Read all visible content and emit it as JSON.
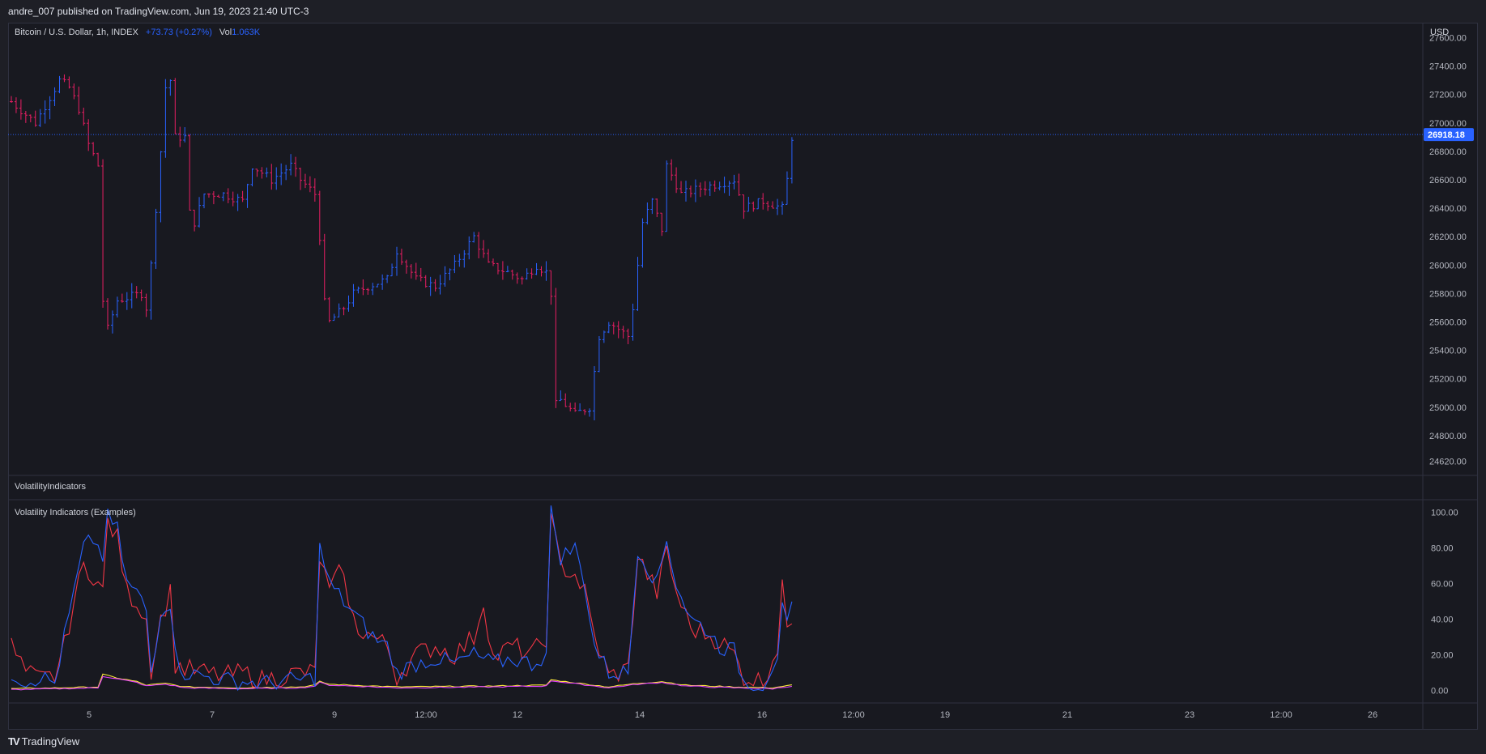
{
  "header": {
    "publish_text": "andre_007 published on TradingView.com, Jun 19, 2023 21:40 UTC-3"
  },
  "main_pane": {
    "symbol": "Bitcoin / U.S. Dollar, 1h, INDEX",
    "change": "+73.73 (+0.27%)",
    "volume_label": "Vol",
    "volume_value": "1.063K",
    "currency": "USD",
    "last_price_label": "26918.18"
  },
  "pane_labels": {
    "pane2_title": "VolatilityIndicators",
    "pane3_title": "Volatility Indicators (Examples)"
  },
  "footer": {
    "brand": "TradingView"
  },
  "colors": {
    "up": "#2962ff",
    "down": "#e91e63",
    "bg": "#181920",
    "grid": "#2a2e39",
    "blue_line": "#2962ff",
    "red_line": "#f23645",
    "yellow_line": "#ffeb3b",
    "pink_line": "#e040fb"
  },
  "chart_data": [
    {
      "type": "ohlc",
      "title": "Bitcoin / U.S. Dollar, 1h, INDEX",
      "y_ticks": [
        27600,
        27400,
        27200,
        27000,
        26800,
        26600,
        26400,
        26200,
        26000,
        25800,
        25600,
        25400,
        25200,
        25000,
        24800,
        24620
      ],
      "y_tick_labels": [
        "27600.00",
        "27400.00",
        "27200.00",
        "27000.00",
        "26800.00",
        "26600.00",
        "26400.00",
        "26200.00",
        "26000.00",
        "25800.00",
        "25600.00",
        "25400.00",
        "25200.00",
        "25000.00",
        "24800.00",
        "24620.00"
      ],
      "ylim": [
        24520,
        27700
      ],
      "last_price": 26918.18,
      "x_tick_labels": [
        "5",
        "7",
        "9",
        "12:00",
        "12",
        "14",
        "16",
        "12:00",
        "19",
        "21",
        "23",
        "12:00",
        "26"
      ],
      "price_path": [
        [
          0,
          27150
        ],
        [
          5,
          27000
        ],
        [
          10,
          27300
        ],
        [
          12,
          27250
        ],
        [
          14,
          27100
        ],
        [
          16,
          26850
        ],
        [
          18,
          26700
        ],
        [
          18.5,
          26000
        ],
        [
          19.5,
          25500
        ],
        [
          22,
          25750
        ],
        [
          27,
          25800
        ],
        [
          27.5,
          25450
        ],
        [
          28,
          25700
        ],
        [
          29,
          26000
        ],
        [
          31,
          26800
        ],
        [
          32,
          27250
        ],
        [
          33,
          27300
        ],
        [
          34,
          26900
        ],
        [
          36,
          26900
        ],
        [
          36.5,
          26400
        ],
        [
          38,
          26300
        ],
        [
          40,
          26500
        ],
        [
          44,
          26500
        ],
        [
          48,
          26450
        ],
        [
          50,
          26700
        ],
        [
          54,
          26600
        ],
        [
          58,
          26700
        ],
        [
          60,
          26600
        ],
        [
          63,
          26500
        ],
        [
          64,
          26200
        ],
        [
          64.5,
          25800
        ],
        [
          66,
          25600
        ],
        [
          69,
          25700
        ],
        [
          71,
          25800
        ],
        [
          74,
          25850
        ],
        [
          78,
          25900
        ],
        [
          80,
          26100
        ],
        [
          84,
          25900
        ],
        [
          88,
          25850
        ],
        [
          92,
          26000
        ],
        [
          96,
          26200
        ],
        [
          99,
          26000
        ],
        [
          103,
          25950
        ],
        [
          106,
          25900
        ],
        [
          109,
          26000
        ],
        [
          111,
          25950
        ],
        [
          112,
          25800
        ],
        [
          112.5,
          25000
        ],
        [
          114,
          25050
        ],
        [
          117,
          24950
        ],
        [
          120,
          25000
        ],
        [
          122,
          25500
        ],
        [
          124,
          25600
        ],
        [
          128,
          25500
        ],
        [
          129,
          25700
        ],
        [
          130,
          26000
        ],
        [
          131,
          26300
        ],
        [
          133,
          26450
        ],
        [
          135,
          26250
        ],
        [
          136,
          26700
        ],
        [
          139,
          26500
        ],
        [
          144,
          26550
        ],
        [
          150,
          26600
        ],
        [
          152,
          26400
        ],
        [
          156,
          26450
        ],
        [
          160,
          26400
        ],
        [
          161,
          26600
        ],
        [
          162,
          26900
        ]
      ],
      "last_index": 162
    },
    {
      "type": "line",
      "title": "Volatility Indicators (Examples)",
      "y_ticks": [
        100,
        80,
        60,
        40,
        20,
        0
      ],
      "y_tick_labels": [
        "100.00",
        "80.00",
        "60.00",
        "40.00",
        "20.00",
        "0.00"
      ],
      "ylim": [
        -7,
        107
      ],
      "series_blue": [
        [
          0,
          10
        ],
        [
          3,
          5
        ],
        [
          6,
          8
        ],
        [
          9,
          4
        ],
        [
          11,
          30
        ],
        [
          13,
          55
        ],
        [
          15,
          80
        ],
        [
          17,
          85
        ],
        [
          19,
          75
        ],
        [
          20,
          97
        ],
        [
          22,
          90
        ],
        [
          24,
          60
        ],
        [
          26,
          55
        ],
        [
          28,
          45
        ],
        [
          29,
          10
        ],
        [
          31,
          45
        ],
        [
          33,
          50
        ],
        [
          34,
          20
        ],
        [
          36,
          10
        ],
        [
          40,
          8
        ],
        [
          44,
          6
        ],
        [
          48,
          5
        ],
        [
          52,
          4
        ],
        [
          56,
          5
        ],
        [
          60,
          6
        ],
        [
          63,
          7
        ],
        [
          64,
          80
        ],
        [
          66,
          60
        ],
        [
          69,
          50
        ],
        [
          72,
          40
        ],
        [
          75,
          30
        ],
        [
          78,
          25
        ],
        [
          80,
          10
        ],
        [
          84,
          15
        ],
        [
          88,
          18
        ],
        [
          92,
          15
        ],
        [
          96,
          20
        ],
        [
          100,
          15
        ],
        [
          104,
          18
        ],
        [
          108,
          15
        ],
        [
          111,
          20
        ],
        [
          112,
          100
        ],
        [
          114,
          75
        ],
        [
          117,
          80
        ],
        [
          119,
          60
        ],
        [
          121,
          25
        ],
        [
          124,
          10
        ],
        [
          128,
          10
        ],
        [
          130,
          80
        ],
        [
          133,
          65
        ],
        [
          134,
          60
        ],
        [
          136,
          85
        ],
        [
          138,
          60
        ],
        [
          141,
          40
        ],
        [
          144,
          35
        ],
        [
          147,
          25
        ],
        [
          150,
          22
        ],
        [
          152,
          5
        ],
        [
          156,
          3
        ],
        [
          159,
          20
        ],
        [
          160,
          45
        ],
        [
          161,
          35
        ],
        [
          162,
          45
        ]
      ],
      "series_red": [
        [
          0,
          25
        ],
        [
          3,
          10
        ],
        [
          6,
          6
        ],
        [
          9,
          8
        ],
        [
          11,
          25
        ],
        [
          13,
          50
        ],
        [
          15,
          70
        ],
        [
          17,
          65
        ],
        [
          19,
          55
        ],
        [
          20,
          95
        ],
        [
          22,
          85
        ],
        [
          24,
          55
        ],
        [
          26,
          50
        ],
        [
          28,
          40
        ],
        [
          29,
          12
        ],
        [
          31,
          40
        ],
        [
          33,
          55
        ],
        [
          34,
          15
        ],
        [
          36,
          12
        ],
        [
          40,
          10
        ],
        [
          44,
          8
        ],
        [
          48,
          10
        ],
        [
          52,
          6
        ],
        [
          56,
          8
        ],
        [
          60,
          10
        ],
        [
          63,
          10
        ],
        [
          64,
          75
        ],
        [
          66,
          55
        ],
        [
          69,
          70
        ],
        [
          70,
          45
        ],
        [
          72,
          35
        ],
        [
          75,
          30
        ],
        [
          78,
          25
        ],
        [
          80,
          8
        ],
        [
          84,
          20
        ],
        [
          88,
          25
        ],
        [
          92,
          20
        ],
        [
          96,
          30
        ],
        [
          98,
          50
        ],
        [
          100,
          18
        ],
        [
          104,
          25
        ],
        [
          108,
          20
        ],
        [
          111,
          30
        ],
        [
          112,
          95
        ],
        [
          114,
          70
        ],
        [
          117,
          65
        ],
        [
          119,
          55
        ],
        [
          121,
          30
        ],
        [
          124,
          8
        ],
        [
          128,
          12
        ],
        [
          130,
          75
        ],
        [
          133,
          60
        ],
        [
          134,
          55
        ],
        [
          136,
          78
        ],
        [
          138,
          55
        ],
        [
          141,
          35
        ],
        [
          144,
          32
        ],
        [
          147,
          28
        ],
        [
          150,
          20
        ],
        [
          152,
          8
        ],
        [
          156,
          5
        ],
        [
          159,
          25
        ],
        [
          160,
          62
        ],
        [
          161,
          30
        ],
        [
          162,
          40
        ]
      ],
      "series_yellow": [
        [
          0,
          1
        ],
        [
          10,
          1.5
        ],
        [
          18,
          2
        ],
        [
          19,
          9
        ],
        [
          22,
          7
        ],
        [
          26,
          5
        ],
        [
          28,
          3
        ],
        [
          32,
          4
        ],
        [
          36,
          2
        ],
        [
          48,
          1.5
        ],
        [
          60,
          2
        ],
        [
          63,
          3
        ],
        [
          64,
          5
        ],
        [
          66,
          3.5
        ],
        [
          80,
          2
        ],
        [
          100,
          2.5
        ],
        [
          111,
          3
        ],
        [
          112,
          6
        ],
        [
          118,
          4
        ],
        [
          124,
          2
        ],
        [
          130,
          4
        ],
        [
          135,
          5
        ],
        [
          140,
          3
        ],
        [
          150,
          2
        ],
        [
          158,
          1.5
        ],
        [
          162,
          3
        ]
      ],
      "series_pink": [
        [
          0,
          0.5
        ],
        [
          10,
          1
        ],
        [
          18,
          1.5
        ],
        [
          19,
          8
        ],
        [
          22,
          6.5
        ],
        [
          26,
          4.5
        ],
        [
          28,
          2.5
        ],
        [
          32,
          3.5
        ],
        [
          36,
          1.5
        ],
        [
          48,
          1
        ],
        [
          60,
          1.5
        ],
        [
          63,
          2.5
        ],
        [
          64,
          4.5
        ],
        [
          66,
          3
        ],
        [
          80,
          1.5
        ],
        [
          100,
          2
        ],
        [
          111,
          2.5
        ],
        [
          112,
          5.5
        ],
        [
          118,
          3.5
        ],
        [
          124,
          1.5
        ],
        [
          130,
          3.5
        ],
        [
          135,
          4.5
        ],
        [
          140,
          2.5
        ],
        [
          150,
          1.5
        ],
        [
          158,
          1
        ],
        [
          162,
          2.5
        ]
      ]
    }
  ]
}
